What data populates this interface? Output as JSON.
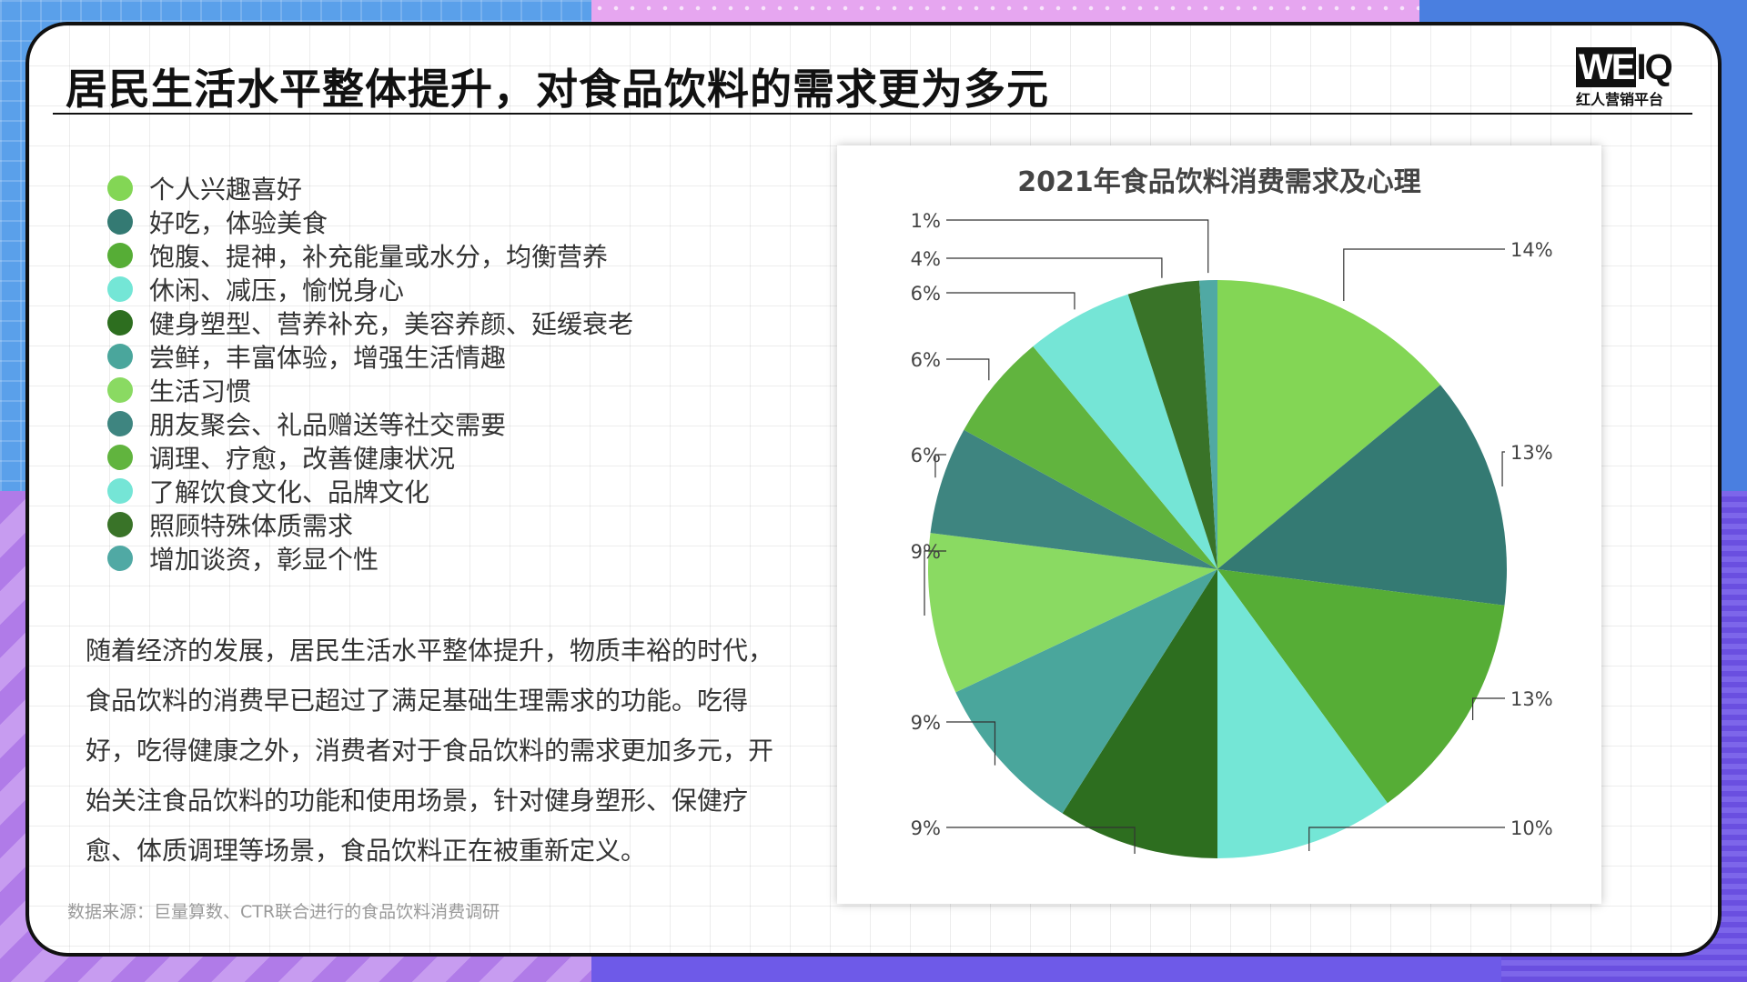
{
  "page": {
    "title": "居民生活水平整体提升，对食品饮料的需求更为多元",
    "logo_mark_a": "WE",
    "logo_mark_b": "I",
    "logo_mark_c": "Q",
    "logo_sub": "红人营销平台",
    "paragraph": "随着经济的发展，居民生活水平整体提升，物质丰裕的时代，食品饮料的消费早已超过了满足基础生理需求的功能。吃得好，吃得健康之外，消费者对于食品饮料的需求更加多元，开始关注食品饮料的功能和使用场景，针对健身塑形、保健疗愈、体质调理等场景，食品饮料正在被重新定义。",
    "source": "数据来源：巨量算数、CTR联合进行的食品饮料消费调研"
  },
  "chart_data": {
    "type": "pie",
    "title": "2021年食品饮料消费需求及心理",
    "legend_position": "left",
    "unit": "%",
    "categories": [
      "个人兴趣喜好",
      "好吃，体验美食",
      "饱腹、提神，补充能量或水分，均衡营养",
      "休闲、减压，愉悦身心",
      "健身塑型、营养补充，美容养颜、延缓衰老",
      "尝鲜，丰富体验，增强生活情趣",
      "生活习惯",
      "朋友聚会、礼品赠送等社交需要",
      "调理、疗愈，改善健康状况",
      "了解饮食文化、品牌文化",
      "照顾特殊体质需求",
      "增加谈资，彰显个性"
    ],
    "values": [
      14,
      13,
      13,
      10,
      9,
      9,
      9,
      6,
      6,
      6,
      4,
      1
    ],
    "labels": [
      "14%",
      "13%",
      "13%",
      "10%",
      "9%",
      "9%",
      "9%",
      "6%",
      "6%",
      "6%",
      "4%",
      "1%"
    ],
    "colors": [
      "#83d655",
      "#347a73",
      "#56ad36",
      "#74e6d6",
      "#2d6e1f",
      "#4aa69c",
      "#8ada62",
      "#3e8580",
      "#61b43e",
      "#75e5d6",
      "#397328",
      "#50a9a4"
    ]
  }
}
